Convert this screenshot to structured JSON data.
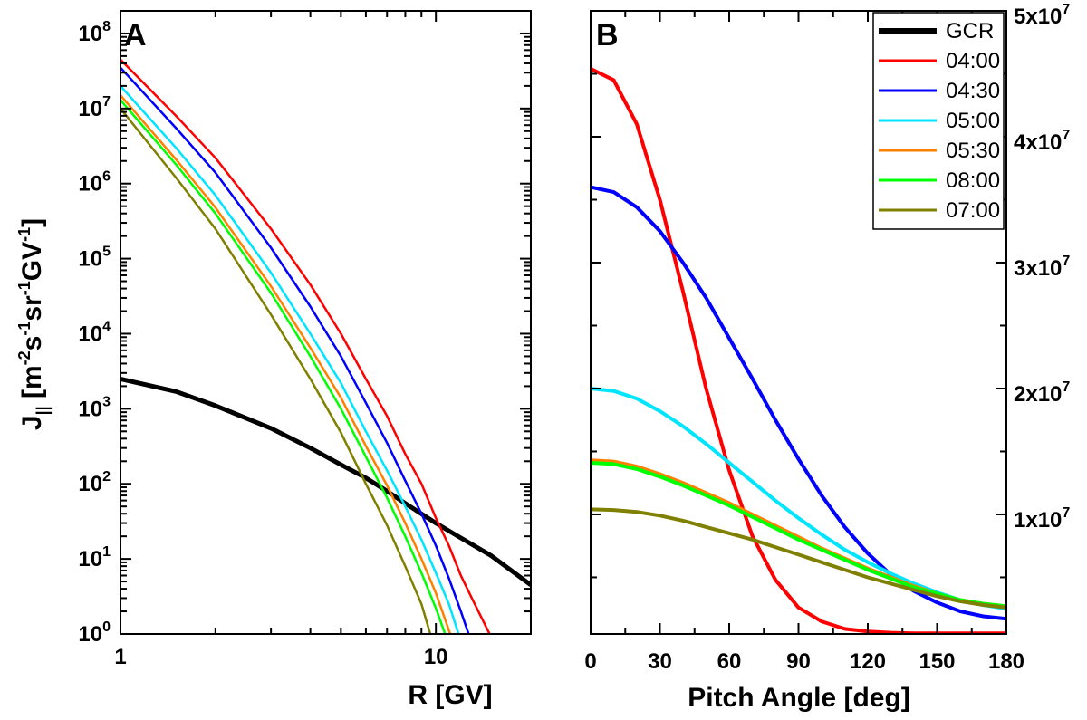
{
  "chart_data": [
    {
      "id": "panel-a",
      "type": "line",
      "panel_label": "A",
      "xlabel": "R [GV]",
      "ylabel": {
        "base": "J",
        "sub": "||",
        "parts": [
          {
            "t": " [m",
            "sup": false
          },
          {
            "t": "-2",
            "sup": true
          },
          {
            "t": "s",
            "sup": false
          },
          {
            "t": "-1",
            "sup": true
          },
          {
            "t": "sr",
            "sup": false
          },
          {
            "t": "-1",
            "sup": true
          },
          {
            "t": "GV",
            "sup": false
          },
          {
            "t": "-1",
            "sup": true
          },
          {
            "t": "]",
            "sup": false
          }
        ]
      },
      "x_scale": "log",
      "y_scale": "log",
      "xlim": [
        1,
        20
      ],
      "ylim": [
        1,
        200000000
      ],
      "x_ticks": [
        {
          "v": 1,
          "label": "1"
        },
        {
          "v": 10,
          "label": "10"
        }
      ],
      "y_ticks": [
        {
          "v": 1,
          "base": "10",
          "exp": "0"
        },
        {
          "v": 10,
          "base": "10",
          "exp": "1"
        },
        {
          "v": 100,
          "base": "10",
          "exp": "2"
        },
        {
          "v": 1000,
          "base": "10",
          "exp": "3"
        },
        {
          "v": 10000,
          "base": "10",
          "exp": "4"
        },
        {
          "v": 100000,
          "base": "10",
          "exp": "5"
        },
        {
          "v": 1000000,
          "base": "10",
          "exp": "6"
        },
        {
          "v": 10000000,
          "base": "10",
          "exp": "7"
        },
        {
          "v": 100000000,
          "base": "10",
          "exp": "8"
        }
      ],
      "series": [
        {
          "name": "GCR",
          "color": "#000000",
          "width": 5,
          "x": [
            1,
            1.5,
            2,
            3,
            4,
            5,
            6,
            7,
            8,
            10,
            12,
            15,
            20
          ],
          "y": [
            2500,
            1700,
            1100,
            550,
            300,
            180,
            120,
            80,
            55,
            30,
            19,
            11,
            4.5
          ]
        },
        {
          "name": "04:00",
          "color": "#ff0000",
          "width": 2.5,
          "x": [
            1,
            1.5,
            2,
            3,
            4,
            5,
            6,
            7,
            8,
            9,
            10,
            11,
            12,
            13,
            14,
            14.8
          ],
          "y": [
            45000000,
            8000000,
            2200000,
            250000,
            45000,
            10000,
            2500,
            800,
            250,
            100,
            35,
            15,
            6,
            3,
            1.6,
            1
          ]
        },
        {
          "name": "04:30",
          "color": "#0000ff",
          "width": 2.5,
          "x": [
            1,
            1.5,
            2,
            3,
            4,
            5,
            6,
            7,
            8,
            9,
            10,
            11,
            12,
            12.7
          ],
          "y": [
            35000000,
            5500000,
            1400000,
            140000,
            23000,
            5000,
            1200,
            350,
            110,
            40,
            15,
            5.5,
            2,
            1
          ]
        },
        {
          "name": "05:00",
          "color": "#00e5ff",
          "width": 2.5,
          "x": [
            1,
            1.5,
            2,
            3,
            4,
            5,
            6,
            7,
            8,
            9,
            10,
            11,
            11.8
          ],
          "y": [
            20000000,
            3000000,
            700000,
            65000,
            10000,
            2200,
            500,
            150,
            50,
            18,
            6.5,
            2.5,
            1
          ]
        },
        {
          "name": "05:30",
          "color": "#ff8000",
          "width": 2.5,
          "x": [
            1,
            1.5,
            2,
            3,
            4,
            5,
            6,
            7,
            8,
            9,
            10,
            11.1
          ],
          "y": [
            15000000,
            2100000,
            480000,
            43000,
            6500,
            1400,
            320,
            95,
            30,
            10,
            3.5,
            1
          ]
        },
        {
          "name": "08:00",
          "color": "#00ff00",
          "width": 2.5,
          "x": [
            1,
            1.5,
            2,
            3,
            4,
            5,
            6,
            7,
            8,
            9,
            10,
            10.7
          ],
          "y": [
            13000000,
            1800000,
            400000,
            35000,
            5000,
            1000,
            230,
            65,
            20,
            6.5,
            2.2,
            1
          ]
        },
        {
          "name": "07:00",
          "color": "#808000",
          "width": 2.5,
          "x": [
            1,
            1.5,
            2,
            3,
            4,
            5,
            6,
            7,
            8,
            9,
            9.6
          ],
          "y": [
            10000000,
            1200000,
            250000,
            18000,
            2500,
            480,
            100,
            28,
            8,
            2.5,
            1
          ]
        }
      ]
    },
    {
      "id": "panel-b",
      "type": "line",
      "panel_label": "B",
      "xlabel": "Pitch Angle [deg]",
      "x_scale": "linear",
      "y_scale": "linear",
      "xlim": [
        0,
        180
      ],
      "ylim": [
        500000,
        50000000
      ],
      "x_ticks": [
        {
          "v": 0,
          "label": "0"
        },
        {
          "v": 30,
          "label": "30"
        },
        {
          "v": 60,
          "label": "60"
        },
        {
          "v": 90,
          "label": "90"
        },
        {
          "v": 120,
          "label": "120"
        },
        {
          "v": 150,
          "label": "150"
        },
        {
          "v": 180,
          "label": "180"
        }
      ],
      "y_ticks": [
        {
          "v": 10000000,
          "base": "1x10",
          "exp": "7"
        },
        {
          "v": 20000000,
          "base": "2x10",
          "exp": "7"
        },
        {
          "v": 30000000,
          "base": "3x10",
          "exp": "7"
        },
        {
          "v": 40000000,
          "base": "4x10",
          "exp": "7"
        },
        {
          "v": 50000000,
          "base": "5x10",
          "exp": "7"
        }
      ],
      "legend": {
        "position": "top-right",
        "entries": [
          {
            "name": "GCR",
            "color": "#000000",
            "width": 6
          },
          {
            "name": "04:00",
            "color": "#ff0000",
            "width": 3
          },
          {
            "name": "04:30",
            "color": "#0000ff",
            "width": 3
          },
          {
            "name": "05:00",
            "color": "#00e5ff",
            "width": 3
          },
          {
            "name": "05:30",
            "color": "#ff8000",
            "width": 3
          },
          {
            "name": "08:00",
            "color": "#00ff00",
            "width": 3
          },
          {
            "name": "07:00",
            "color": "#808000",
            "width": 3
          }
        ]
      },
      "series": [
        {
          "name": "04:00",
          "color": "#ff0000",
          "width": 4,
          "x": [
            0,
            10,
            20,
            30,
            40,
            50,
            60,
            70,
            80,
            90,
            100,
            110,
            120,
            130,
            140,
            150,
            160,
            170,
            180
          ],
          "y": [
            45400000,
            44500000,
            41000000,
            35000000,
            27700000,
            20000000,
            13500000,
            8300000,
            4800000,
            2600000,
            1500000,
            900000,
            700000,
            600000,
            550000,
            550000,
            550000,
            550000,
            550000
          ]
        },
        {
          "name": "04:30",
          "color": "#0000ff",
          "width": 4,
          "x": [
            0,
            10,
            20,
            30,
            40,
            50,
            60,
            70,
            80,
            90,
            100,
            110,
            120,
            130,
            140,
            150,
            160,
            170,
            180
          ],
          "y": [
            36000000,
            35600000,
            34400000,
            32500000,
            30000000,
            27200000,
            24000000,
            20800000,
            17500000,
            14400000,
            11500000,
            9000000,
            6900000,
            5200000,
            3900000,
            3000000,
            2300000,
            1900000,
            1700000
          ]
        },
        {
          "name": "05:00",
          "color": "#00e5ff",
          "width": 4,
          "x": [
            0,
            10,
            20,
            30,
            40,
            50,
            60,
            70,
            80,
            90,
            100,
            110,
            120,
            130,
            140,
            150,
            160,
            170,
            180
          ],
          "y": [
            20000000,
            19800000,
            19200000,
            18200000,
            17000000,
            15600000,
            14100000,
            12600000,
            11100000,
            9700000,
            8400000,
            7200000,
            6200000,
            5300000,
            4500000,
            3800000,
            3200000,
            2800000,
            2500000
          ]
        },
        {
          "name": "05:30",
          "color": "#ff8000",
          "width": 4,
          "x": [
            0,
            10,
            20,
            30,
            40,
            50,
            60,
            70,
            80,
            90,
            100,
            110,
            120,
            130,
            140,
            150,
            160,
            170,
            180
          ],
          "y": [
            14300000,
            14200000,
            13800000,
            13200000,
            12500000,
            11700000,
            10900000,
            10000000,
            9100000,
            8200000,
            7300000,
            6500000,
            5700000,
            5000000,
            4300000,
            3700000,
            3200000,
            2900000,
            2700000
          ]
        },
        {
          "name": "08:00",
          "color": "#00ff00",
          "width": 4,
          "x": [
            0,
            10,
            20,
            30,
            40,
            50,
            60,
            70,
            80,
            90,
            100,
            110,
            120,
            130,
            140,
            150,
            160,
            170,
            180
          ],
          "y": [
            14100000,
            14000000,
            13600000,
            13000000,
            12300000,
            11500000,
            10700000,
            9800000,
            8900000,
            8000000,
            7200000,
            6400000,
            5600000,
            4900000,
            4200000,
            3700000,
            3200000,
            2900000,
            2700000
          ]
        },
        {
          "name": "07:00",
          "color": "#808000",
          "width": 4,
          "x": [
            0,
            10,
            20,
            30,
            40,
            50,
            60,
            70,
            80,
            90,
            100,
            110,
            120,
            130,
            140,
            150,
            160,
            170,
            180
          ],
          "y": [
            10400000,
            10350000,
            10200000,
            9900000,
            9500000,
            9000000,
            8500000,
            8000000,
            7400000,
            6800000,
            6200000,
            5600000,
            5000000,
            4500000,
            4000000,
            3500000,
            3100000,
            2800000,
            2600000
          ]
        }
      ]
    }
  ]
}
